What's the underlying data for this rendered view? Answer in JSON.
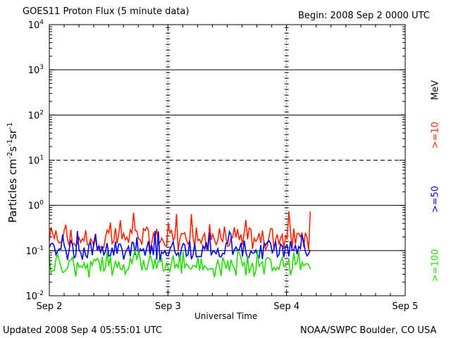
{
  "header": {
    "title": "GOES11 Proton Flux (5 minute data)",
    "begin": "Begin: 2008 Sep 2 0000 UTC"
  },
  "footer": {
    "updated": "Updated 2008 Sep  4 05:55:01 UTC",
    "credit": "NOAA/SWPC Boulder, CO USA"
  },
  "chart_data": {
    "type": "line",
    "title": "GOES11 Proton Flux (5 minute data)",
    "xlabel": "Universal Time",
    "ylabel": "Particles cm-2s-1sr-1",
    "ylabel_parts": {
      "base": "Particles cm",
      "sup1": "-2",
      "mid1": "s",
      "sup2": "-1",
      "mid2": "sr",
      "sup3": "-1"
    },
    "y_scale": "log",
    "ylim": [
      0.01,
      10000
    ],
    "y_ticks": [
      {
        "base": "10",
        "exp": "-2"
      },
      {
        "base": "10",
        "exp": "-1"
      },
      {
        "base": "10",
        "exp": "0"
      },
      {
        "base": "10",
        "exp": "1"
      },
      {
        "base": "10",
        "exp": "2"
      },
      {
        "base": "10",
        "exp": "3"
      },
      {
        "base": "10",
        "exp": "4"
      }
    ],
    "x_ticks": [
      "Sep 2",
      "Sep 3",
      "Sep 4",
      "Sep 5"
    ],
    "x_range_days": [
      0,
      3
    ],
    "solid_gridlines": [
      0.1,
      1,
      100,
      1000
    ],
    "dashed_gridlines": [
      10
    ],
    "unit_label": "MeV",
    "series": [
      {
        "name": ">=10",
        "color": "#ff2200",
        "typical": 0.2,
        "min": 0.1,
        "max": 0.75,
        "end_day": 2.2
      },
      {
        "name": ">=50",
        "color": "#0000ee",
        "typical": 0.11,
        "min": 0.06,
        "max": 0.32,
        "end_day": 2.2
      },
      {
        "name": ">=100",
        "color": "#22dd00",
        "typical": 0.05,
        "min": 0.025,
        "max": 0.11,
        "end_day": 2.2
      }
    ]
  }
}
